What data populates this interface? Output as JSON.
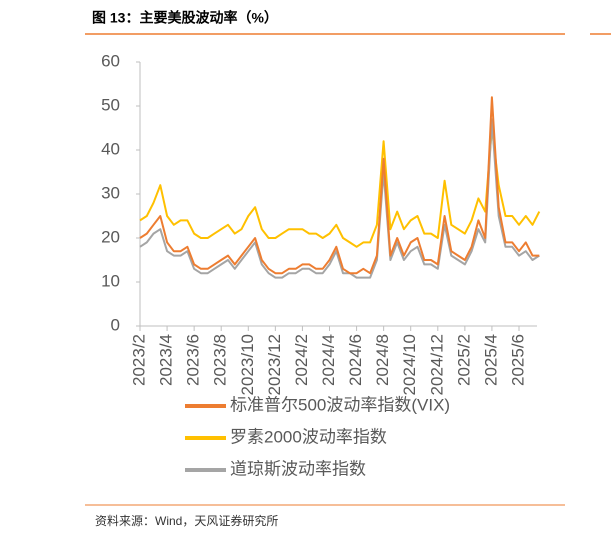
{
  "chart_data": {
    "type": "line",
    "title": "图 13：主要美股波动率（%）",
    "source": "资料来源：Wind，天风证券研究所",
    "x": [
      "2023/2",
      null,
      null,
      null,
      "2023/4",
      null,
      null,
      null,
      "2023/6",
      null,
      null,
      null,
      "2023/8",
      null,
      null,
      null,
      "2023/10",
      null,
      null,
      null,
      "2023/12",
      null,
      null,
      null,
      "2024/2",
      null,
      null,
      null,
      "2024/4",
      null,
      null,
      null,
      "2024/6",
      null,
      null,
      null,
      "2024/8",
      null,
      null,
      null,
      "2024/10",
      null,
      null,
      null,
      "2024/12",
      null,
      null,
      null,
      "2025/2",
      null,
      null,
      null,
      "2025/4",
      null,
      null,
      null,
      "2025/6",
      null,
      null,
      null
    ],
    "series": [
      {
        "name": "标准普尔500波动率指数(VIX)",
        "color": "#ed7d31",
        "values": [
          20,
          21,
          23,
          25,
          19,
          17,
          17,
          18,
          14,
          13,
          13,
          14,
          15,
          16,
          14,
          16,
          18,
          20,
          15,
          13,
          12,
          12,
          13,
          13,
          14,
          14,
          13,
          13,
          15,
          18,
          13,
          12,
          12,
          13,
          12,
          16,
          38,
          16,
          20,
          16,
          19,
          20,
          15,
          15,
          14,
          25,
          17,
          16,
          15,
          18,
          24,
          20,
          52,
          27,
          19,
          19,
          17,
          19,
          16,
          16
        ]
      },
      {
        "name": "罗素2000波动率指数",
        "color": "#ffc000",
        "values": [
          24,
          25,
          28,
          32,
          25,
          23,
          24,
          24,
          21,
          20,
          20,
          21,
          22,
          23,
          21,
          22,
          25,
          27,
          22,
          20,
          20,
          21,
          22,
          22,
          22,
          21,
          21,
          20,
          21,
          23,
          20,
          19,
          18,
          19,
          19,
          23,
          42,
          22,
          26,
          22,
          24,
          25,
          21,
          21,
          20,
          33,
          23,
          22,
          21,
          24,
          29,
          26,
          45,
          32,
          25,
          25,
          23,
          25,
          23,
          26
        ]
      },
      {
        "name": "道琼斯波动率指数",
        "color": "#a5a5a5",
        "values": [
          18,
          19,
          21,
          22,
          17,
          16,
          16,
          17,
          13,
          12,
          12,
          13,
          14,
          15,
          13,
          15,
          17,
          19,
          14,
          12,
          11,
          11,
          12,
          12,
          13,
          13,
          12,
          12,
          14,
          17,
          12,
          12,
          11,
          11,
          11,
          15,
          35,
          15,
          19,
          15,
          17,
          18,
          14,
          14,
          13,
          23,
          16,
          15,
          14,
          17,
          22,
          19,
          47,
          25,
          18,
          18,
          16,
          17,
          15,
          16
        ]
      }
    ],
    "ylim": [
      0,
      60
    ],
    "yticks": [
      0,
      10,
      20,
      30,
      40,
      50,
      60
    ]
  }
}
